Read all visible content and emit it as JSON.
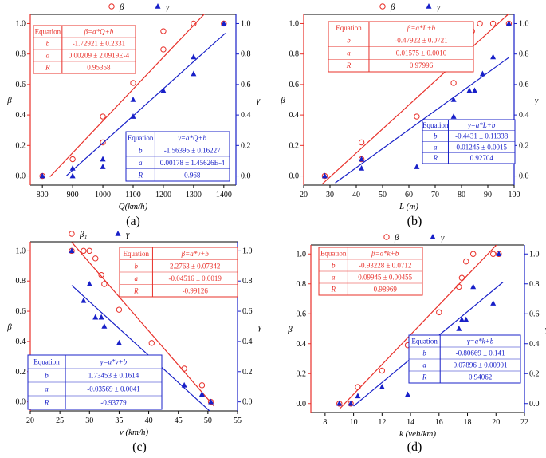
{
  "colors": {
    "beta": "#e8302a",
    "gamma": "#1820c8",
    "axis": "#000000"
  },
  "chart_data": [
    {
      "caption": "(a)",
      "type": "scatter",
      "xlabel": "Q(km/h)",
      "ylabel_left": "β",
      "ylabel_right": "γ",
      "xlim": [
        760,
        1440
      ],
      "ylim": [
        -0.06,
        1.06
      ],
      "xticks": [
        800,
        900,
        1000,
        1100,
        1200,
        1300,
        1400
      ],
      "yticks": [
        0.0,
        0.2,
        0.4,
        0.6,
        0.8,
        1.0
      ],
      "legend": [
        {
          "name": "β",
          "marker": "open-circle"
        },
        {
          "name": "γ",
          "marker": "filled-triangle"
        }
      ],
      "series": [
        {
          "name": "β",
          "marker": "open-circle",
          "points": [
            [
              800,
              0.0
            ],
            [
              900,
              0.11
            ],
            [
              1000,
              0.22
            ],
            [
              1000,
              0.39
            ],
            [
              1100,
              0.61
            ],
            [
              1100,
              0.78
            ],
            [
              1200,
              0.83
            ],
            [
              1200,
              0.95
            ],
            [
              1300,
              1.0
            ],
            [
              1400,
              1.0
            ]
          ],
          "fit": {
            "slope": 0.00209,
            "intercept": -1.72921,
            "x": [
              825,
              1340
            ]
          }
        },
        {
          "name": "γ",
          "marker": "filled-triangle",
          "points": [
            [
              800,
              0.0
            ],
            [
              900,
              0.0
            ],
            [
              900,
              0.05
            ],
            [
              1000,
              0.06
            ],
            [
              1000,
              0.11
            ],
            [
              1100,
              0.39
            ],
            [
              1100,
              0.5
            ],
            [
              1200,
              0.56
            ],
            [
              1300,
              0.67
            ],
            [
              1300,
              0.78
            ],
            [
              1400,
              1.0
            ]
          ],
          "fit": {
            "slope": 0.00178,
            "intercept": -1.56395,
            "x": [
              880,
              1405
            ]
          }
        }
      ],
      "tables": [
        {
          "color": "beta",
          "rows": [
            [
              "Equation",
              "β=a*Q+b"
            ],
            [
              "b",
              "-1.72921 ± 0.2331"
            ],
            [
              "a",
              "0.00209 ± 2.0919E-4"
            ],
            [
              "R",
              "0.95358"
            ]
          ]
        },
        {
          "color": "gamma",
          "rows": [
            [
              "Equation",
              "γ=a*Q+b"
            ],
            [
              "b",
              "-1.56395 ± 0.16227"
            ],
            [
              "a",
              "0.00178 ± 1.45626E-4"
            ],
            [
              "R",
              "0.968"
            ]
          ]
        }
      ]
    },
    {
      "caption": "(b)",
      "type": "scatter",
      "xlabel": "L (m)",
      "ylabel_left": "β",
      "ylabel_right": "γ",
      "xlim": [
        20,
        100
      ],
      "ylim": [
        -0.06,
        1.06
      ],
      "xticks": [
        20,
        30,
        40,
        50,
        60,
        70,
        80,
        90,
        100
      ],
      "yticks": [
        0.0,
        0.2,
        0.4,
        0.6,
        0.8,
        1.0
      ],
      "legend": [
        {
          "name": "β",
          "marker": "open-circle"
        },
        {
          "name": "γ",
          "marker": "filled-triangle"
        }
      ],
      "series": [
        {
          "name": "β",
          "marker": "open-circle",
          "points": [
            [
              28,
              0.0
            ],
            [
              42,
              0.11
            ],
            [
              42,
              0.22
            ],
            [
              63,
              0.39
            ],
            [
              77,
              0.61
            ],
            [
              77,
              0.78
            ],
            [
              83,
              0.83
            ],
            [
              84,
              0.95
            ],
            [
              87,
              1.0
            ],
            [
              92,
              1.0
            ],
            [
              98,
              1.0
            ]
          ],
          "fit": {
            "slope": 0.01575,
            "intercept": -0.47922,
            "x": [
              27,
              98
            ]
          }
        },
        {
          "name": "γ",
          "marker": "filled-triangle",
          "points": [
            [
              28,
              0.0
            ],
            [
              42,
              0.05
            ],
            [
              42,
              0.11
            ],
            [
              63,
              0.06
            ],
            [
              77,
              0.39
            ],
            [
              77,
              0.5
            ],
            [
              83,
              0.56
            ],
            [
              85,
              0.56
            ],
            [
              88,
              0.67
            ],
            [
              92,
              0.78
            ],
            [
              98,
              1.0
            ]
          ],
          "fit": {
            "slope": 0.01245,
            "intercept": -0.4431,
            "x": [
              32,
              98
            ]
          }
        }
      ],
      "tables": [
        {
          "color": "beta",
          "rows": [
            [
              "Equation",
              "β=a*L+b"
            ],
            [
              "b",
              "-0.47922 ± 0.0721"
            ],
            [
              "a",
              "0.01575 ± 0.0010"
            ],
            [
              "R",
              "0.97996"
            ]
          ]
        },
        {
          "color": "gamma",
          "rows": [
            [
              "Equation",
              "γ=a*L+b"
            ],
            [
              "b",
              "-0.4431 ± 0.11338"
            ],
            [
              "a",
              "0.01245 ± 0.0015"
            ],
            [
              "R",
              "0.92704"
            ]
          ]
        }
      ]
    },
    {
      "caption": "(c)",
      "type": "scatter",
      "xlabel": "v (km/h)",
      "ylabel_left": "β",
      "ylabel_right": "γ",
      "xlim": [
        20,
        55
      ],
      "ylim": [
        -0.06,
        1.06
      ],
      "xticks": [
        20,
        25,
        30,
        35,
        40,
        45,
        50,
        55
      ],
      "yticks": [
        0.0,
        0.2,
        0.4,
        0.6,
        0.8,
        1.0
      ],
      "legend": [
        {
          "name": "β₁",
          "marker": "open-circle"
        },
        {
          "name": "γ",
          "marker": "filled-triangle"
        }
      ],
      "series": [
        {
          "name": "β₁",
          "marker": "open-circle",
          "points": [
            [
              27,
              1.0
            ],
            [
              29,
              1.0
            ],
            [
              30,
              1.0
            ],
            [
              31,
              0.95
            ],
            [
              32,
              0.84
            ],
            [
              32.5,
              0.78
            ],
            [
              35,
              0.61
            ],
            [
              40.5,
              0.39
            ],
            [
              46,
              0.22
            ],
            [
              49,
              0.11
            ],
            [
              50.5,
              0.0
            ]
          ],
          "fit": {
            "slope": -0.04516,
            "intercept": 2.2763,
            "x": [
              27,
              51
            ]
          }
        },
        {
          "name": "γ",
          "marker": "filled-triangle",
          "points": [
            [
              27,
              1.0
            ],
            [
              29,
              0.67
            ],
            [
              30,
              0.78
            ],
            [
              31,
              0.56
            ],
            [
              32,
              0.56
            ],
            [
              32.5,
              0.5
            ],
            [
              35,
              0.39
            ],
            [
              40.5,
              0.06
            ],
            [
              46,
              0.11
            ],
            [
              49,
              0.05
            ],
            [
              50.5,
              0.0
            ]
          ],
          "fit": {
            "slope": -0.03569,
            "intercept": 1.73453,
            "x": [
              27,
              50.5
            ]
          }
        }
      ],
      "tables": [
        {
          "color": "beta",
          "rows": [
            [
              "Equation",
              "β=a*v+b"
            ],
            [
              "b",
              "2.2763 ± 0.07342"
            ],
            [
              "a",
              "-0.04516 ± 0.0019"
            ],
            [
              "R",
              "-0.99126"
            ]
          ]
        },
        {
          "color": "gamma",
          "rows": [
            [
              "Equation",
              "γ=a*v+b"
            ],
            [
              "b",
              "1.73453 ± 0.1614"
            ],
            [
              "a",
              "-0.03569 ± 0.0041"
            ],
            [
              "R",
              "-0.93779"
            ]
          ]
        }
      ]
    },
    {
      "caption": "(d)",
      "type": "scatter",
      "xlabel": "k (veh/km)",
      "ylabel_left": "β",
      "ylabel_right": "γ",
      "xlim": [
        7,
        22
      ],
      "ylim": [
        -0.06,
        1.06
      ],
      "xticks": [
        8,
        10,
        12,
        14,
        16,
        18,
        20,
        22
      ],
      "yticks": [
        0.0,
        0.2,
        0.4,
        0.6,
        0.8,
        1.0
      ],
      "legend": [
        {
          "name": "β",
          "marker": "open-circle"
        },
        {
          "name": "γ",
          "marker": "filled-triangle"
        }
      ],
      "series": [
        {
          "name": "β",
          "marker": "open-circle",
          "points": [
            [
              9,
              0.0
            ],
            [
              9.8,
              0.0
            ],
            [
              10.3,
              0.11
            ],
            [
              12,
              0.22
            ],
            [
              13.8,
              0.39
            ],
            [
              16,
              0.61
            ],
            [
              17.4,
              0.78
            ],
            [
              17.6,
              0.84
            ],
            [
              17.9,
              0.95
            ],
            [
              18.4,
              1.0
            ],
            [
              19.8,
              1.0
            ],
            [
              20.2,
              1.0
            ]
          ],
          "fit": {
            "slope": 0.09945,
            "intercept": -0.93228,
            "x": [
              9,
              20.5
            ]
          }
        },
        {
          "name": "γ",
          "marker": "filled-triangle",
          "points": [
            [
              9,
              0.0
            ],
            [
              9.8,
              0.0
            ],
            [
              10.3,
              0.05
            ],
            [
              12,
              0.11
            ],
            [
              13.8,
              0.06
            ],
            [
              16,
              0.39
            ],
            [
              17.4,
              0.5
            ],
            [
              17.6,
              0.56
            ],
            [
              17.9,
              0.56
            ],
            [
              18.4,
              0.78
            ],
            [
              19.8,
              0.67
            ],
            [
              20.2,
              1.0
            ]
          ],
          "fit": {
            "slope": 0.07896,
            "intercept": -0.80669,
            "x": [
              10,
              20.5
            ]
          }
        }
      ],
      "tables": [
        {
          "color": "beta",
          "rows": [
            [
              "Equation",
              "β=a*k+b"
            ],
            [
              "b",
              "-0.93228 ± 0.0712"
            ],
            [
              "a",
              "0.09945 ± 0.00455"
            ],
            [
              "R",
              "0.98969"
            ]
          ]
        },
        {
          "color": "gamma",
          "rows": [
            [
              "Equation",
              "γ=a*k+b"
            ],
            [
              "b",
              "-0.80669 ± 0.141"
            ],
            [
              "a",
              "0.07896 ± 0.00901"
            ],
            [
              "R",
              "0.94062"
            ]
          ]
        }
      ]
    }
  ]
}
